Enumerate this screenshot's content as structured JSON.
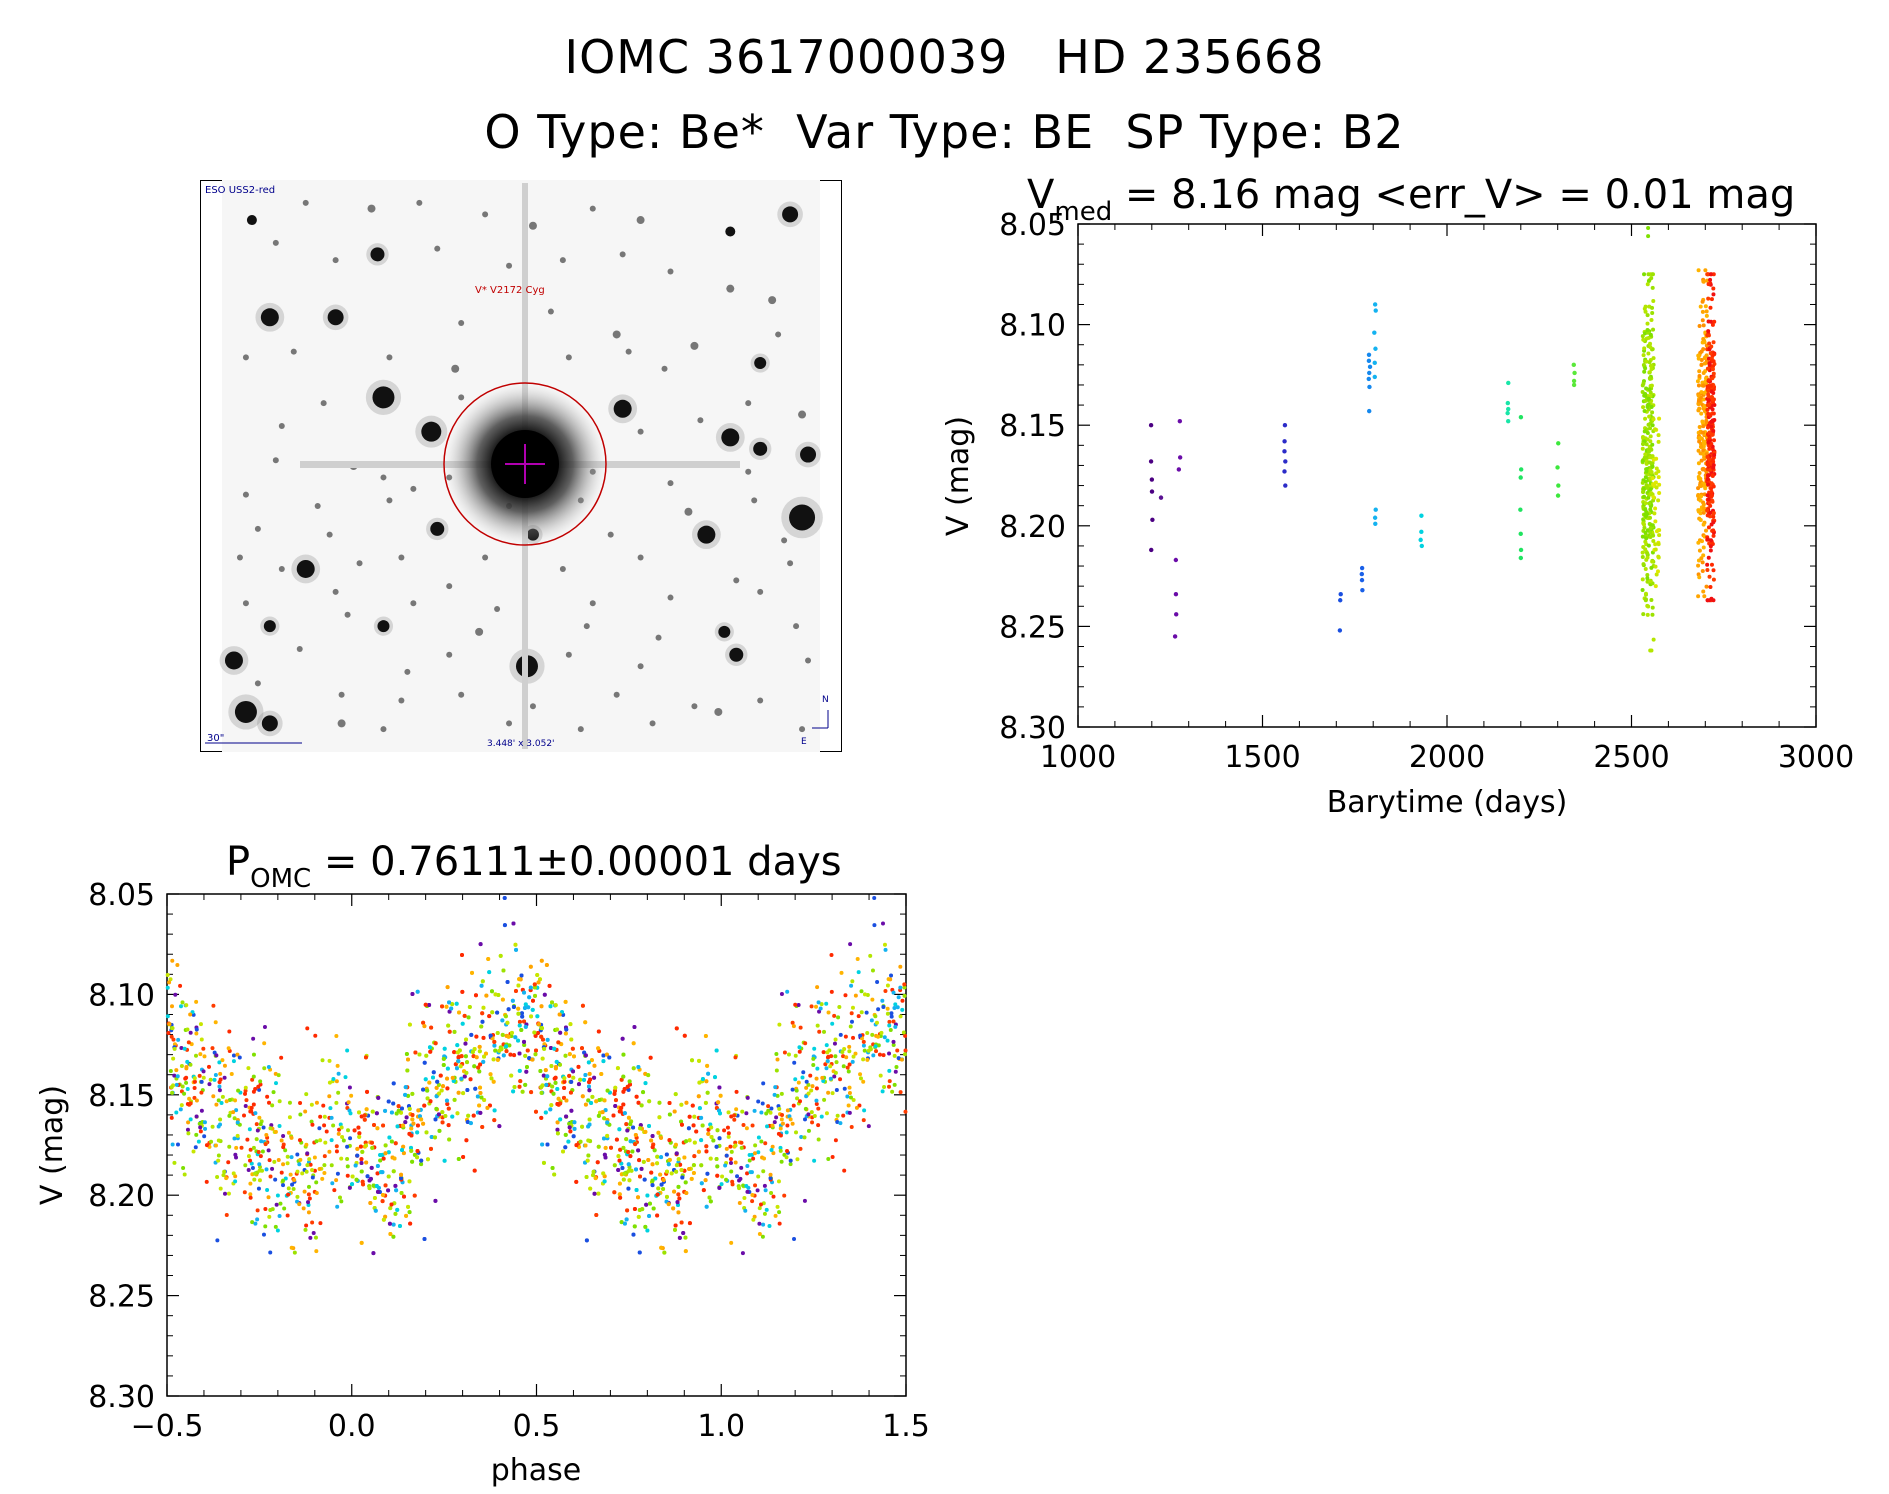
{
  "header": {
    "line1": "IOMC 3617000039   HD 235668",
    "line2": "O Type: Be*  Var Type: BE  SP Type: B2"
  },
  "finder_chart": {
    "corner_label": "ESO USS2-red",
    "target_label": "V* V2172 Cyg",
    "scale_label": "30\"",
    "fov_label": "3.448' x 3.052'",
    "north_label": "N",
    "east_label": "E",
    "stars": [
      [
        0.05,
        0.07,
        5
      ],
      [
        0.14,
        0.04,
        3
      ],
      [
        0.25,
        0.05,
        4
      ],
      [
        0.33,
        0.04,
        3
      ],
      [
        0.44,
        0.06,
        3
      ],
      [
        0.52,
        0.08,
        4
      ],
      [
        0.62,
        0.05,
        3
      ],
      [
        0.7,
        0.07,
        4
      ],
      [
        0.85,
        0.09,
        5
      ],
      [
        0.95,
        0.06,
        8
      ],
      [
        0.09,
        0.11,
        3
      ],
      [
        0.19,
        0.14,
        3
      ],
      [
        0.26,
        0.13,
        7
      ],
      [
        0.36,
        0.12,
        3
      ],
      [
        0.48,
        0.15,
        3
      ],
      [
        0.57,
        0.14,
        3
      ],
      [
        0.67,
        0.13,
        3
      ],
      [
        0.75,
        0.16,
        3
      ],
      [
        0.85,
        0.19,
        4
      ],
      [
        0.92,
        0.21,
        4
      ],
      [
        0.08,
        0.24,
        9
      ],
      [
        0.19,
        0.24,
        8
      ],
      [
        0.4,
        0.25,
        3
      ],
      [
        0.55,
        0.23,
        3
      ],
      [
        0.66,
        0.27,
        4
      ],
      [
        0.79,
        0.29,
        4
      ],
      [
        0.93,
        0.27,
        3
      ],
      [
        0.04,
        0.31,
        3
      ],
      [
        0.12,
        0.3,
        3
      ],
      [
        0.28,
        0.31,
        3
      ],
      [
        0.39,
        0.33,
        4
      ],
      [
        0.58,
        0.31,
        3
      ],
      [
        0.68,
        0.3,
        3
      ],
      [
        0.74,
        0.33,
        3
      ],
      [
        0.9,
        0.32,
        6
      ],
      [
        0.27,
        0.38,
        11
      ],
      [
        0.17,
        0.39,
        3
      ],
      [
        0.4,
        0.38,
        3
      ],
      [
        0.67,
        0.4,
        9
      ],
      [
        0.7,
        0.44,
        3
      ],
      [
        0.8,
        0.42,
        3
      ],
      [
        0.88,
        0.39,
        3
      ],
      [
        0.97,
        0.41,
        4
      ],
      [
        0.1,
        0.43,
        3
      ],
      [
        0.35,
        0.44,
        10
      ],
      [
        0.52,
        0.45,
        3
      ],
      [
        0.85,
        0.45,
        9
      ],
      [
        0.9,
        0.47,
        7
      ],
      [
        0.98,
        0.48,
        8
      ],
      [
        0.09,
        0.49,
        3
      ],
      [
        0.22,
        0.5,
        4
      ],
      [
        0.27,
        0.52,
        3
      ],
      [
        0.38,
        0.52,
        3
      ],
      [
        0.62,
        0.51,
        3
      ],
      [
        0.75,
        0.53,
        3
      ],
      [
        0.88,
        0.51,
        3
      ],
      [
        0.04,
        0.55,
        3
      ],
      [
        0.16,
        0.57,
        3
      ],
      [
        0.28,
        0.56,
        3
      ],
      [
        0.32,
        0.54,
        3
      ],
      [
        0.48,
        0.57,
        3
      ],
      [
        0.6,
        0.56,
        3
      ],
      [
        0.78,
        0.58,
        4
      ],
      [
        0.89,
        0.56,
        3
      ],
      [
        0.97,
        0.59,
        13
      ],
      [
        0.06,
        0.61,
        3
      ],
      [
        0.18,
        0.62,
        3
      ],
      [
        0.36,
        0.61,
        7
      ],
      [
        0.52,
        0.62,
        6
      ],
      [
        0.65,
        0.62,
        3
      ],
      [
        0.81,
        0.62,
        9
      ],
      [
        0.94,
        0.63,
        3
      ],
      [
        0.03,
        0.66,
        3
      ],
      [
        0.1,
        0.68,
        3
      ],
      [
        0.14,
        0.68,
        9
      ],
      [
        0.23,
        0.67,
        3
      ],
      [
        0.3,
        0.66,
        3
      ],
      [
        0.44,
        0.66,
        3
      ],
      [
        0.57,
        0.68,
        3
      ],
      [
        0.7,
        0.66,
        3
      ],
      [
        0.86,
        0.7,
        3
      ],
      [
        0.95,
        0.67,
        3
      ],
      [
        0.04,
        0.74,
        3
      ],
      [
        0.19,
        0.72,
        3
      ],
      [
        0.32,
        0.74,
        3
      ],
      [
        0.38,
        0.71,
        3
      ],
      [
        0.46,
        0.75,
        3
      ],
      [
        0.62,
        0.74,
        3
      ],
      [
        0.75,
        0.73,
        3
      ],
      [
        0.9,
        0.72,
        3
      ],
      [
        0.08,
        0.78,
        6
      ],
      [
        0.21,
        0.76,
        3
      ],
      [
        0.27,
        0.78,
        6
      ],
      [
        0.43,
        0.79,
        4
      ],
      [
        0.61,
        0.78,
        3
      ],
      [
        0.73,
        0.8,
        3
      ],
      [
        0.84,
        0.79,
        6
      ],
      [
        0.96,
        0.78,
        3
      ],
      [
        0.02,
        0.84,
        9
      ],
      [
        0.13,
        0.82,
        3
      ],
      [
        0.31,
        0.86,
        3
      ],
      [
        0.38,
        0.83,
        3
      ],
      [
        0.51,
        0.85,
        11
      ],
      [
        0.58,
        0.83,
        3
      ],
      [
        0.7,
        0.85,
        3
      ],
      [
        0.86,
        0.83,
        7
      ],
      [
        0.98,
        0.84,
        3
      ],
      [
        0.06,
        0.88,
        3
      ],
      [
        0.2,
        0.9,
        3
      ],
      [
        0.3,
        0.91,
        3
      ],
      [
        0.4,
        0.9,
        3
      ],
      [
        0.52,
        0.92,
        3
      ],
      [
        0.66,
        0.9,
        3
      ],
      [
        0.79,
        0.92,
        3
      ],
      [
        0.9,
        0.91,
        3
      ],
      [
        0.04,
        0.93,
        11
      ],
      [
        0.08,
        0.95,
        8
      ],
      [
        0.2,
        0.95,
        4
      ],
      [
        0.27,
        0.96,
        3
      ],
      [
        0.48,
        0.95,
        3
      ],
      [
        0.6,
        0.96,
        3
      ],
      [
        0.72,
        0.95,
        3
      ],
      [
        0.83,
        0.93,
        4
      ],
      [
        0.97,
        0.96,
        3
      ]
    ]
  },
  "chart_data": [
    {
      "type": "scatter",
      "title": "V_med = 8.16 mag <err_V> = 0.01 mag",
      "title_parts": {
        "v": "V",
        "sub": "med",
        "rest": " = 8.16 mag <err_V> = 0.01 mag"
      },
      "xlabel": "Barytime (days)",
      "ylabel": "V (mag)",
      "xlim": [
        1000,
        3000
      ],
      "ylim": [
        8.05,
        8.3
      ],
      "y_inverted": true,
      "xticks": [
        1000,
        1500,
        2000,
        2500,
        3000
      ],
      "xtick_labels": [
        "1000",
        "1500",
        "2000",
        "2500",
        "3000"
      ],
      "yticks": [
        8.05,
        8.1,
        8.15,
        8.2,
        8.25,
        8.3
      ],
      "ytick_labels": [
        "8.05",
        "8.10",
        "8.15",
        "8.20",
        "8.25",
        "8.30"
      ],
      "color_scale": "rainbow by barytime (violet = early, red = late)",
      "clusters": [
        {
          "x": 1200,
          "y": [
            8.15,
            8.168,
            8.177,
            8.183,
            8.197,
            8.212
          ],
          "color": "#4b0082"
        },
        {
          "x": 1225,
          "y": [
            8.186
          ],
          "color": "#5a1292"
        },
        {
          "x": 1265,
          "y": [
            8.217,
            8.234,
            8.244,
            8.255
          ],
          "color": "#6a0ca8"
        },
        {
          "x": 1275,
          "y": [
            8.148,
            8.166,
            8.172
          ],
          "color": "#6a0ca8"
        },
        {
          "x": 1560,
          "y": [
            8.15,
            8.158,
            8.163,
            8.168,
            8.173,
            8.18
          ],
          "color": "#2c2cc8"
        },
        {
          "x": 1710,
          "y": [
            8.234,
            8.237,
            8.252
          ],
          "color": "#1a4fe0"
        },
        {
          "x": 1770,
          "y": [
            8.221,
            8.224,
            8.227,
            8.232
          ],
          "color": "#1a60e8"
        },
        {
          "x": 1790,
          "y": [
            8.115,
            8.118,
            8.121,
            8.124,
            8.127,
            8.131,
            8.143
          ],
          "color": "#1588ee"
        },
        {
          "x": 1805,
          "y": [
            8.09,
            8.093,
            8.104,
            8.112,
            8.119,
            8.126,
            8.192,
            8.196,
            8.199
          ],
          "color": "#14b2f0"
        },
        {
          "x": 1930,
          "y": [
            8.195,
            8.203,
            8.207,
            8.21
          ],
          "color": "#00d2e0"
        },
        {
          "x": 2165,
          "y": [
            8.129,
            8.139,
            8.142,
            8.144,
            8.148
          ],
          "color": "#18e6a8"
        },
        {
          "x": 2200,
          "y": [
            8.146,
            8.172,
            8.176,
            8.192,
            8.204,
            8.212,
            8.216
          ],
          "color": "#20e460"
        },
        {
          "x": 2300,
          "y": [
            8.159,
            8.171,
            8.18,
            8.185
          ],
          "color": "#3ce83c"
        },
        {
          "x": 2345,
          "y": [
            8.12,
            8.124,
            8.128,
            8.13
          ],
          "color": "#5ae83a"
        }
      ],
      "dense_bands": [
        {
          "x_min": 2530,
          "x_max": 2560,
          "y_min": 8.075,
          "y_max": 8.262,
          "count": 320,
          "outliers": [
            8.052,
            8.056
          ],
          "colors": [
            "#7fe000",
            "#9ce200",
            "#b4e600"
          ]
        },
        {
          "x_min": 2555,
          "x_max": 2575,
          "y_min": 8.14,
          "y_max": 8.23,
          "count": 40,
          "colors": [
            "#c8e600",
            "#dde800"
          ]
        },
        {
          "x_min": 2680,
          "x_max": 2705,
          "y_min": 8.073,
          "y_max": 8.235,
          "count": 200,
          "colors": [
            "#ffa500",
            "#ffb400",
            "#ff9000"
          ]
        },
        {
          "x_min": 2705,
          "x_max": 2725,
          "y_min": 8.075,
          "y_max": 8.237,
          "count": 260,
          "colors": [
            "#ff2a00",
            "#ff3c00",
            "#f01010"
          ]
        }
      ]
    },
    {
      "type": "scatter",
      "title": "P_OMC = 0.76111±0.00001 days",
      "title_parts": {
        "p": "P",
        "sub": "OMC",
        "rest": " = 0.76111±0.00001 days"
      },
      "xlabel": "phase",
      "ylabel": "V (mag)",
      "xlim": [
        -0.5,
        1.5
      ],
      "ylim": [
        8.05,
        8.3
      ],
      "y_inverted": true,
      "xticks": [
        -0.5,
        0.0,
        0.5,
        1.0,
        1.5
      ],
      "xtick_labels": [
        "−0.5",
        "0.0",
        "0.5",
        "1.0",
        "1.5"
      ],
      "yticks": [
        8.05,
        8.1,
        8.15,
        8.2,
        8.25,
        8.3
      ],
      "ytick_labels": [
        "8.05",
        "8.10",
        "8.15",
        "8.20",
        "8.25",
        "8.30"
      ],
      "period_days": 0.76111,
      "folded_curve": {
        "phase": [
          0.0,
          0.05,
          0.1,
          0.15,
          0.2,
          0.25,
          0.3,
          0.35,
          0.4,
          0.45,
          0.5,
          0.55,
          0.6,
          0.65,
          0.7,
          0.75,
          0.8,
          0.85,
          0.9,
          0.95,
          1.0
        ],
        "mean_mag": [
          8.168,
          8.178,
          8.19,
          8.172,
          8.15,
          8.146,
          8.138,
          8.128,
          8.116,
          8.114,
          8.12,
          8.14,
          8.152,
          8.162,
          8.166,
          8.172,
          8.182,
          8.19,
          8.186,
          8.176,
          8.168
        ]
      },
      "scatter_sigma_mag": 0.022,
      "point_count_per_cycle": 950,
      "colors": [
        "#ff2a00",
        "#ff3c00",
        "#ffa500",
        "#ffb400",
        "#7fe000",
        "#9ce200",
        "#b4e600",
        "#c8e600",
        "#14b2f0",
        "#00d2e0",
        "#1a4fe0",
        "#6a0ca8"
      ]
    }
  ]
}
